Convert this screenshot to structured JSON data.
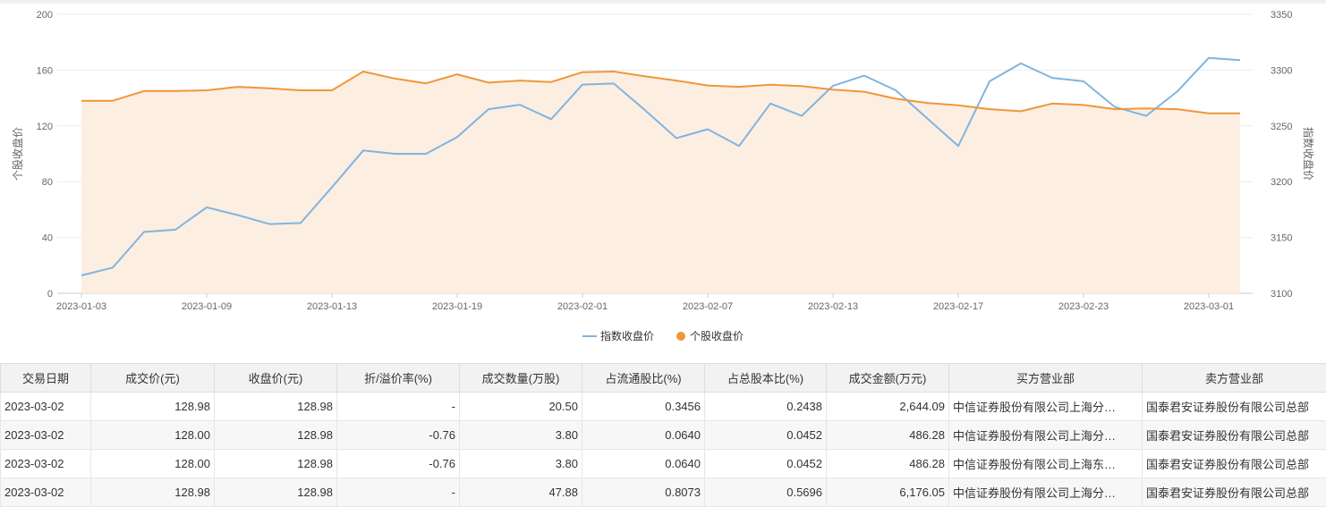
{
  "chart_data": {
    "type": "line",
    "x": [
      "2023-01-03",
      "2023-01-04",
      "2023-01-05",
      "2023-01-06",
      "2023-01-09",
      "2023-01-10",
      "2023-01-11",
      "2023-01-12",
      "2023-01-13",
      "2023-01-16",
      "2023-01-17",
      "2023-01-18",
      "2023-01-19",
      "2023-01-20",
      "2023-01-30",
      "2023-01-31",
      "2023-02-01",
      "2023-02-02",
      "2023-02-03",
      "2023-02-06",
      "2023-02-07",
      "2023-02-08",
      "2023-02-09",
      "2023-02-10",
      "2023-02-13",
      "2023-02-14",
      "2023-02-15",
      "2023-02-16",
      "2023-02-17",
      "2023-02-20",
      "2023-02-21",
      "2023-02-22",
      "2023-02-23",
      "2023-02-24",
      "2023-02-27",
      "2023-02-28",
      "2023-03-01",
      "2023-03-02"
    ],
    "x_ticks": [
      "2023-01-03",
      "2023-01-09",
      "2023-01-13",
      "2023-01-19",
      "2023-02-01",
      "2023-02-07",
      "2023-02-13",
      "2023-02-17",
      "2023-02-23",
      "2023-03-01"
    ],
    "series": [
      {
        "name": "指数收盘价",
        "axis": "right",
        "color": "#7eb5e0",
        "values": [
          3116,
          3123,
          3155,
          3157,
          3177,
          3170,
          3162,
          3163,
          3195,
          3228,
          3225,
          3225,
          3240,
          3265,
          3269,
          3256,
          3287,
          3288,
          3264,
          3239,
          3247,
          3232,
          3270,
          3259,
          3286,
          3295,
          3282,
          3257,
          3232,
          3290,
          3306,
          3293,
          3290,
          3267,
          3259,
          3281,
          3311,
          3309
        ]
      },
      {
        "name": "个股收盘价",
        "axis": "left",
        "color": "#f0963a",
        "area": true,
        "values": [
          138,
          138,
          145,
          145,
          145.5,
          148,
          147,
          145.5,
          145.5,
          159,
          154,
          150.5,
          157,
          151,
          152.5,
          151.5,
          158.5,
          159,
          155.5,
          152.5,
          149,
          148,
          149.5,
          148.5,
          146,
          144.5,
          139.5,
          136.5,
          134.8,
          132,
          130.5,
          136,
          135,
          132,
          132.5,
          132,
          129,
          128.98
        ]
      }
    ],
    "y_left": {
      "label": "个股收盘价",
      "ticks": [
        "0",
        "40",
        "80",
        "120",
        "160",
        "200"
      ],
      "range": [
        0,
        200
      ]
    },
    "y_right": {
      "label": "指数收盘价",
      "ticks": [
        "3100",
        "3150",
        "3200",
        "3250",
        "3300",
        "3350"
      ],
      "range": [
        3100,
        3350
      ]
    },
    "grid": true,
    "legend_position": "bottom-center"
  },
  "legend": [
    {
      "label": "指数收盘价",
      "color": "#7eb5e0",
      "marker": "line"
    },
    {
      "label": "个股收盘价",
      "color": "#f0963a",
      "marker": "dot"
    }
  ],
  "table": {
    "headers": [
      "交易日期",
      "成交价(元)",
      "收盘价(元)",
      "折/溢价率(%)",
      "成交数量(万股)",
      "占流通股比(%)",
      "占总股本比(%)",
      "成交金额(万元)",
      "买方营业部",
      "卖方营业部"
    ],
    "rows": [
      [
        "2023-03-02",
        "128.98",
        "128.98",
        "-",
        "20.50",
        "0.3456",
        "0.2438",
        "2,644.09",
        "中信证券股份有限公司上海分…",
        "国泰君安证券股份有限公司总部"
      ],
      [
        "2023-03-02",
        "128.00",
        "128.98",
        "-0.76",
        "3.80",
        "0.0640",
        "0.0452",
        "486.28",
        "中信证券股份有限公司上海分…",
        "国泰君安证券股份有限公司总部"
      ],
      [
        "2023-03-02",
        "128.00",
        "128.98",
        "-0.76",
        "3.80",
        "0.0640",
        "0.0452",
        "486.28",
        "中信证券股份有限公司上海东…",
        "国泰君安证券股份有限公司总部"
      ],
      [
        "2023-03-02",
        "128.98",
        "128.98",
        "-",
        "47.88",
        "0.8073",
        "0.5696",
        "6,176.05",
        "中信证券股份有限公司上海分…",
        "国泰君安证券股份有限公司总部"
      ]
    ]
  }
}
